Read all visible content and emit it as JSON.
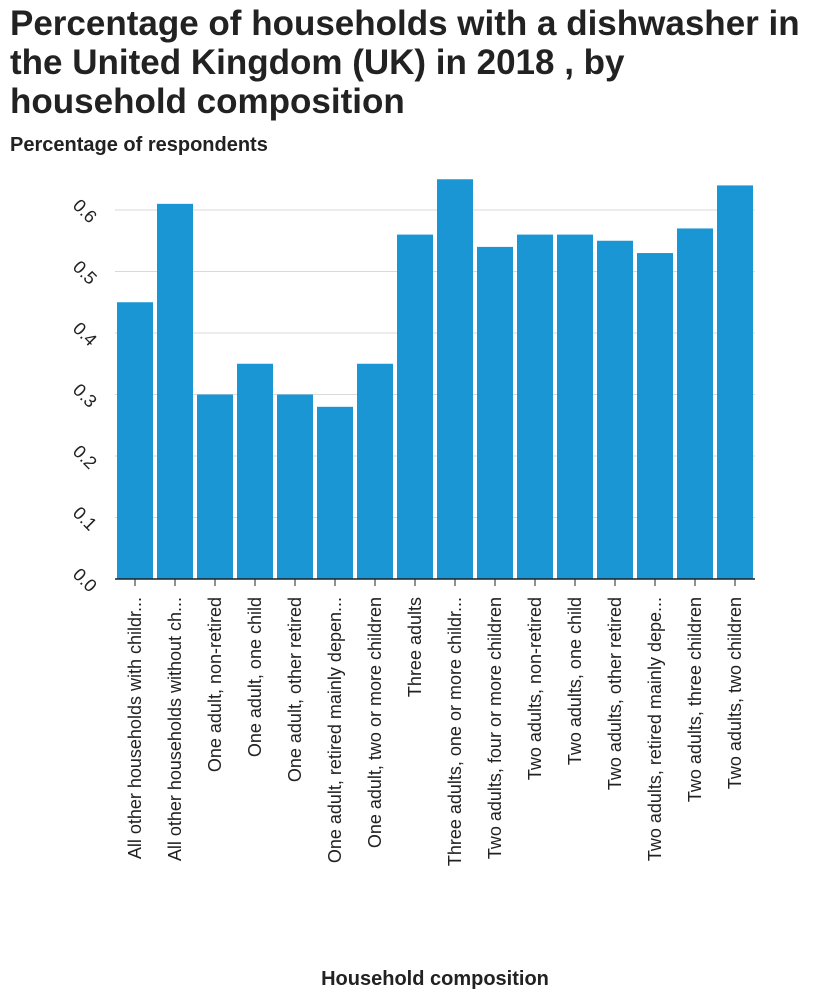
{
  "chart_data": {
    "type": "bar",
    "title": "Percentage of households with a dishwasher in the United Kingdom (UK) in 2018 , by household composition",
    "ylabel": "Percentage of respondents",
    "xlabel": "Household composition",
    "ylim": [
      0,
      0.65
    ],
    "yticks": [
      "0.0",
      "0.1",
      "0.2",
      "0.3",
      "0.4",
      "0.5",
      "0.6"
    ],
    "grid": "horizontal",
    "bar_color": "#1a96d4",
    "categories": [
      "All other households with childr...",
      "All other households without ch...",
      "One adult, non-retired",
      "One adult, one child",
      "One adult, other retired",
      "One adult, retired mainly depen...",
      "One adult, two or more children",
      "Three adults",
      "Three adults, one or more childr...",
      "Two adults, four or more children",
      "Two adults, non-retired",
      "Two adults, one child",
      "Two adults, other retired",
      "Two adults, retired mainly depe...",
      "Two adults, three children",
      "Two adults, two children"
    ],
    "values": [
      0.45,
      0.61,
      0.3,
      0.35,
      0.3,
      0.28,
      0.35,
      0.56,
      0.65,
      0.54,
      0.56,
      0.56,
      0.55,
      0.53,
      0.57,
      0.64
    ]
  }
}
